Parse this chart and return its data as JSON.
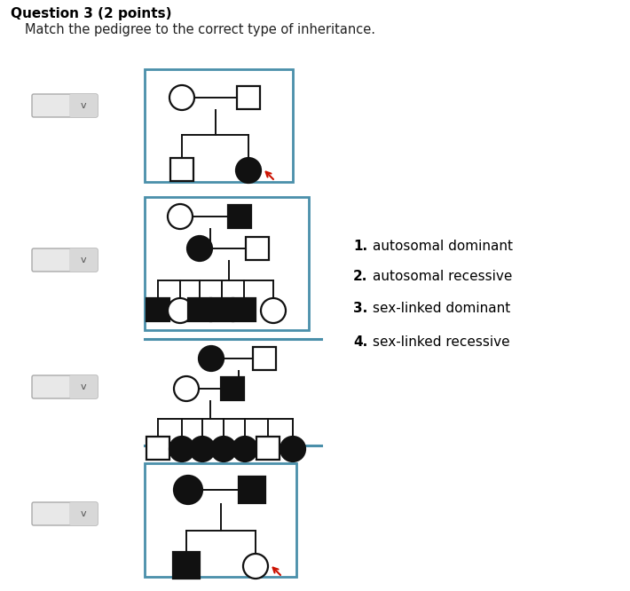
{
  "title": "Question 3 (2 points)",
  "subtitle": "Match the pedigree to the correct type of inheritance.",
  "options": [
    "autosomal dominant",
    "autosomal recessive",
    "sex-linked dominant",
    "sex-linked recessive"
  ],
  "bg": "#ffffff",
  "border_color": "#4a8faa",
  "drop_bg": "#e8e8e8",
  "drop_border": "#aaaaaa",
  "R": 14,
  "S": 26
}
